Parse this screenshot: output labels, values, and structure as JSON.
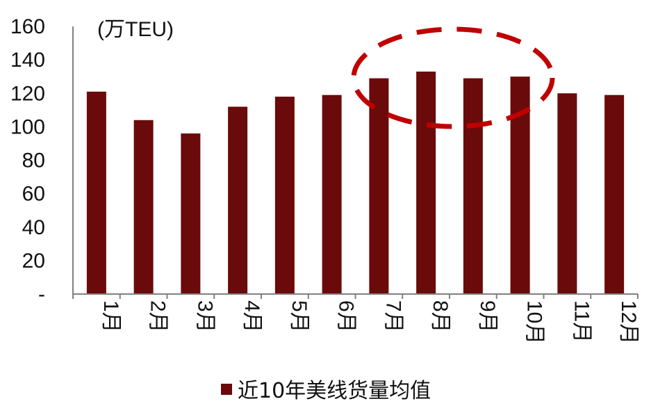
{
  "chart_data": {
    "type": "bar",
    "unit_label": "(万TEU)",
    "categories": [
      "1月",
      "2月",
      "3月",
      "4月",
      "5月",
      "6月",
      "7月",
      "8月",
      "9月",
      "10月",
      "11月",
      "12月"
    ],
    "series": [
      {
        "name": "近10年美线货量均值",
        "values": [
          121,
          104,
          96,
          112,
          118,
          119,
          129,
          133,
          129,
          130,
          120,
          119
        ]
      }
    ],
    "ylim": [
      0,
      160
    ],
    "yticks": [
      0,
      20,
      40,
      60,
      80,
      100,
      120,
      140,
      160
    ],
    "ytick_labels": [
      "-",
      "20",
      "40",
      "60",
      "80",
      "100",
      "120",
      "140",
      "160"
    ],
    "highlight_categories": [
      "7月",
      "8月",
      "9月",
      "10月"
    ],
    "grid": false,
    "legend_position": "bottom",
    "colors": {
      "bar": "#6B0A0A",
      "highlight": "#C00000",
      "axis": "#808080"
    }
  }
}
